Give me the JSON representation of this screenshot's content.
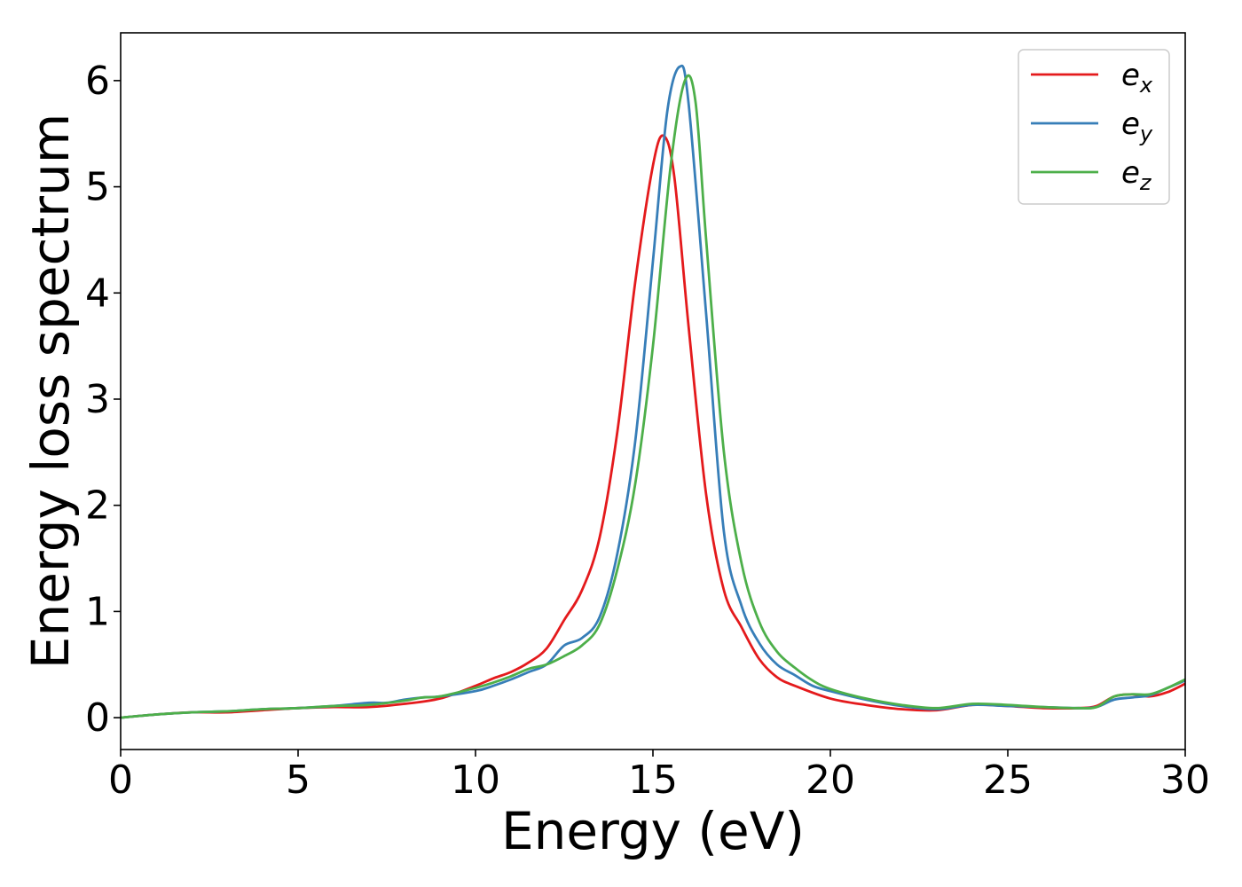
{
  "chart_data": {
    "type": "line",
    "title": "",
    "xlabel": "Energy (eV)",
    "ylabel": "Energy loss spectrum",
    "xlim": [
      0,
      30
    ],
    "ylim": [
      -0.3,
      6.45
    ],
    "xticks": [
      0,
      5,
      10,
      15,
      20,
      25,
      30
    ],
    "yticks": [
      0,
      1,
      2,
      3,
      4,
      5,
      6
    ],
    "grid": false,
    "legend_position": "top-right",
    "series": [
      {
        "name": "e_x",
        "label_base": "e",
        "label_sub": "x",
        "color": "#e41a1c",
        "x": [
          0,
          1,
          2,
          3,
          4,
          5,
          6,
          7,
          8,
          9,
          10,
          10.5,
          11,
          11.5,
          12,
          12.5,
          13,
          13.5,
          14,
          14.5,
          15,
          15.3,
          15.6,
          16,
          16.5,
          17,
          17.5,
          18,
          18.5,
          19,
          20,
          21,
          22,
          23,
          24,
          25,
          26,
          27,
          27.5,
          28,
          28.5,
          29,
          29.5,
          30
        ],
        "y": [
          0,
          0.03,
          0.05,
          0.05,
          0.07,
          0.09,
          0.1,
          0.1,
          0.13,
          0.18,
          0.3,
          0.37,
          0.43,
          0.52,
          0.65,
          0.92,
          1.2,
          1.7,
          2.7,
          4.1,
          5.2,
          5.48,
          5.1,
          3.7,
          2.1,
          1.2,
          0.85,
          0.55,
          0.38,
          0.3,
          0.18,
          0.12,
          0.08,
          0.07,
          0.12,
          0.11,
          0.09,
          0.09,
          0.11,
          0.2,
          0.22,
          0.2,
          0.24,
          0.32
        ]
      },
      {
        "name": "e_y",
        "label_base": "e",
        "label_sub": "y",
        "color": "#377eb8",
        "x": [
          0,
          1,
          2,
          3,
          4,
          5,
          6,
          7,
          7.5,
          8,
          8.5,
          9,
          10,
          10.5,
          11,
          11.5,
          12,
          12.5,
          13,
          13.5,
          14,
          14.5,
          15,
          15.4,
          15.75,
          16,
          16.5,
          17,
          17.5,
          18,
          18.5,
          19,
          19.5,
          20,
          21,
          22,
          23,
          24,
          25,
          26,
          27,
          27.5,
          28,
          28.5,
          29,
          29.5,
          30
        ],
        "y": [
          0,
          0.03,
          0.05,
          0.06,
          0.08,
          0.09,
          0.11,
          0.14,
          0.14,
          0.17,
          0.19,
          0.2,
          0.25,
          0.3,
          0.36,
          0.43,
          0.5,
          0.68,
          0.75,
          0.95,
          1.55,
          2.6,
          4.3,
          5.7,
          6.13,
          5.8,
          3.8,
          1.75,
          1.05,
          0.7,
          0.5,
          0.4,
          0.3,
          0.25,
          0.17,
          0.11,
          0.08,
          0.12,
          0.11,
          0.1,
          0.09,
          0.1,
          0.17,
          0.19,
          0.21,
          0.28,
          0.35
        ]
      },
      {
        "name": "e_z",
        "label_base": "e",
        "label_sub": "z",
        "color": "#4daf4a",
        "x": [
          0,
          1,
          2,
          3,
          4,
          5,
          6,
          7,
          8,
          8.5,
          9,
          10,
          10.5,
          11,
          11.5,
          12,
          12.5,
          13,
          13.5,
          14,
          14.5,
          15,
          15.5,
          15.9,
          16.2,
          16.5,
          17,
          17.5,
          18,
          18.5,
          19,
          19.5,
          20,
          21,
          22,
          23,
          24,
          25,
          26,
          27,
          27.5,
          28,
          28.5,
          29,
          29.5,
          30
        ],
        "y": [
          0,
          0.03,
          0.05,
          0.06,
          0.08,
          0.09,
          0.11,
          0.12,
          0.16,
          0.19,
          0.2,
          0.28,
          0.33,
          0.39,
          0.46,
          0.5,
          0.58,
          0.68,
          0.88,
          1.4,
          2.2,
          3.5,
          5.2,
          6.0,
          5.8,
          4.5,
          2.5,
          1.45,
          0.9,
          0.62,
          0.47,
          0.35,
          0.27,
          0.18,
          0.12,
          0.09,
          0.13,
          0.12,
          0.1,
          0.09,
          0.1,
          0.2,
          0.22,
          0.22,
          0.28,
          0.36
        ]
      }
    ]
  }
}
